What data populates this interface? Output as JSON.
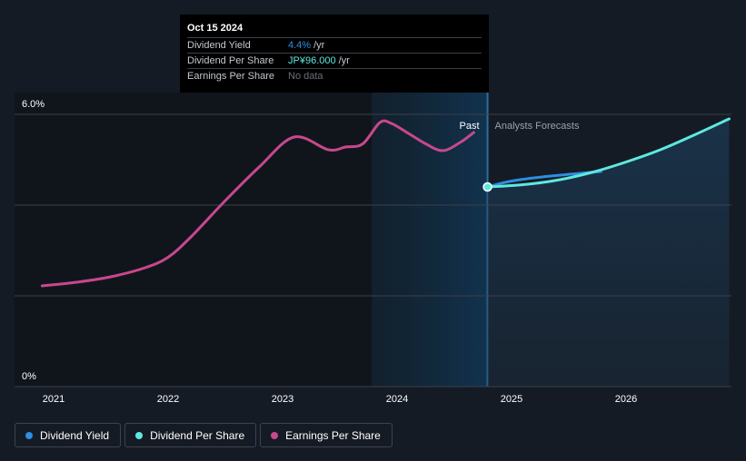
{
  "tooltip": {
    "date": "Oct 15 2024",
    "rows": [
      {
        "label": "Dividend Yield",
        "value": "4.4%",
        "unit": "/yr",
        "color": "#2e8ee0"
      },
      {
        "label": "Dividend Per Share",
        "value": "JP¥96.000",
        "unit": "/yr",
        "color": "#5ee8e0"
      },
      {
        "label": "Earnings Per Share",
        "value": "No data",
        "unit": "",
        "color": "#6a6f78"
      }
    ]
  },
  "legend": [
    {
      "label": "Dividend Yield",
      "color": "#2e8ee0"
    },
    {
      "label": "Dividend Per Share",
      "color": "#5ee8e0"
    },
    {
      "label": "Earnings Per Share",
      "color": "#c8488c"
    }
  ],
  "chart_data": {
    "type": "line",
    "title": "",
    "xlabel": "",
    "ylabel": "",
    "y_tick_labels": [
      "6.0%",
      "0%"
    ],
    "ylim": [
      0,
      6.0
    ],
    "xlim": [
      2020.9,
      2026.9
    ],
    "x_ticks": [
      "2021",
      "2022",
      "2023",
      "2024",
      "2025",
      "2026"
    ],
    "past_label": "Past",
    "forecast_label": "Analysts Forecasts",
    "today": 2024.79,
    "highlight_start": 2023.78,
    "series": [
      {
        "name": "Earnings Per Share",
        "color": "#c8488c",
        "x": [
          2020.9,
          2021.2,
          2021.5,
          2021.8,
          2022.0,
          2022.2,
          2022.5,
          2022.8,
          2023.1,
          2023.4,
          2023.55,
          2023.7,
          2023.85,
          2023.95,
          2024.1,
          2024.25,
          2024.4,
          2024.55,
          2024.67
        ],
        "y": [
          2.22,
          2.3,
          2.42,
          2.62,
          2.85,
          3.3,
          4.1,
          4.85,
          5.5,
          5.22,
          5.28,
          5.35,
          5.82,
          5.8,
          5.58,
          5.35,
          5.2,
          5.38,
          5.6
        ]
      },
      {
        "name": "Dividend Yield",
        "color": "#2e8ee0",
        "x": [
          2024.79,
          2025.0,
          2025.3,
          2025.6,
          2025.78
        ],
        "y": [
          4.4,
          4.53,
          4.63,
          4.7,
          4.74
        ]
      },
      {
        "name": "Dividend Per Share",
        "color": "#5ee8e0",
        "x": [
          2024.79,
          2025.1,
          2025.4,
          2025.7,
          2026.0,
          2026.3,
          2026.6,
          2026.9
        ],
        "y": [
          4.4,
          4.45,
          4.55,
          4.72,
          4.95,
          5.22,
          5.55,
          5.9
        ]
      }
    ]
  }
}
